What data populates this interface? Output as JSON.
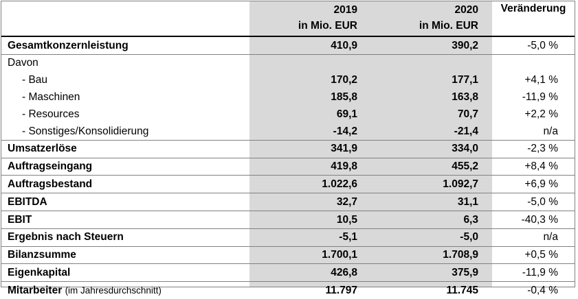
{
  "header": {
    "year1": "2019",
    "year2": "2020",
    "unit1": "in Mio. EUR",
    "unit2": "in Mio. EUR",
    "change": "Veränderung"
  },
  "rows": [
    {
      "label": "Gesamtkonzernleistung",
      "v2019": "410,9",
      "v2020": "390,2",
      "change": "-5,0 %"
    },
    {
      "label": "Davon",
      "v2019": "",
      "v2020": "",
      "change": ""
    },
    {
      "label": "- Bau",
      "v2019": "170,2",
      "v2020": "177,1",
      "change": "+4,1 %"
    },
    {
      "label": "- Maschinen",
      "v2019": "185,8",
      "v2020": "163,8",
      "change": "-11,9 %"
    },
    {
      "label": "- Resources",
      "v2019": "69,1",
      "v2020": "70,7",
      "change": "+2,2 %"
    },
    {
      "label": "- Sonstiges/Konsolidierung",
      "v2019": "-14,2",
      "v2020": "-21,4",
      "change": "n/a"
    },
    {
      "label": "Umsatzerlöse",
      "v2019": "341,9",
      "v2020": "334,0",
      "change": "-2,3 %"
    },
    {
      "label": "Auftragseingang",
      "v2019": "419,8",
      "v2020": "455,2",
      "change": "+8,4 %"
    },
    {
      "label": "Auftragsbestand",
      "v2019": "1.022,6",
      "v2020": "1.092,7",
      "change": "+6,9 %"
    },
    {
      "label": "EBITDA",
      "v2019": "32,7",
      "v2020": "31,1",
      "change": "-5,0 %"
    },
    {
      "label": "EBIT",
      "v2019": "10,5",
      "v2020": "6,3",
      "change": "-40,3 %"
    },
    {
      "label": "Ergebnis nach Steuern",
      "v2019": "-5,1",
      "v2020": "-5,0",
      "change": "n/a"
    },
    {
      "label": "Bilanzsumme",
      "v2019": "1.700,1",
      "v2020": "1.708,9",
      "change": "+0,5 %"
    },
    {
      "label": "Eigenkapital",
      "v2019": "426,8",
      "v2020": "375,9",
      "change": "-11,9 %"
    },
    {
      "label": "Mitarbeiter",
      "label_note": "(im Jahresdurchschnitt)",
      "v2019": "11.797",
      "v2020": "11.745",
      "change": "-0,4 %"
    }
  ]
}
